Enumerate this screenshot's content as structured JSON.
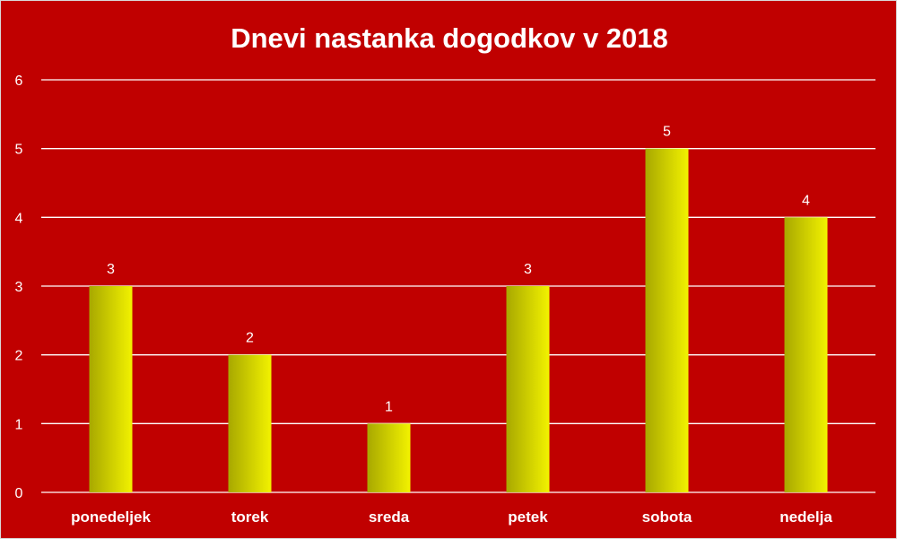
{
  "chart_data": {
    "type": "bar",
    "title": "Dnevi nastanka dogodkov v 2018",
    "categories": [
      "ponedeljek",
      "torek",
      "sreda",
      "petek",
      "sobota",
      "nedelja"
    ],
    "values": [
      3,
      2,
      1,
      3,
      5,
      4
    ],
    "y_ticks": [
      "0",
      "1",
      "2",
      "3",
      "4",
      "5",
      "6"
    ],
    "ylim": [
      0,
      6
    ],
    "grid": true,
    "data_labels": true,
    "legend": "none",
    "colors": {
      "background": "#c00000",
      "bar_light": "#f2f200",
      "bar_dark": "#a8a800",
      "text": "#ffffff",
      "grid": "#ffffff"
    }
  }
}
